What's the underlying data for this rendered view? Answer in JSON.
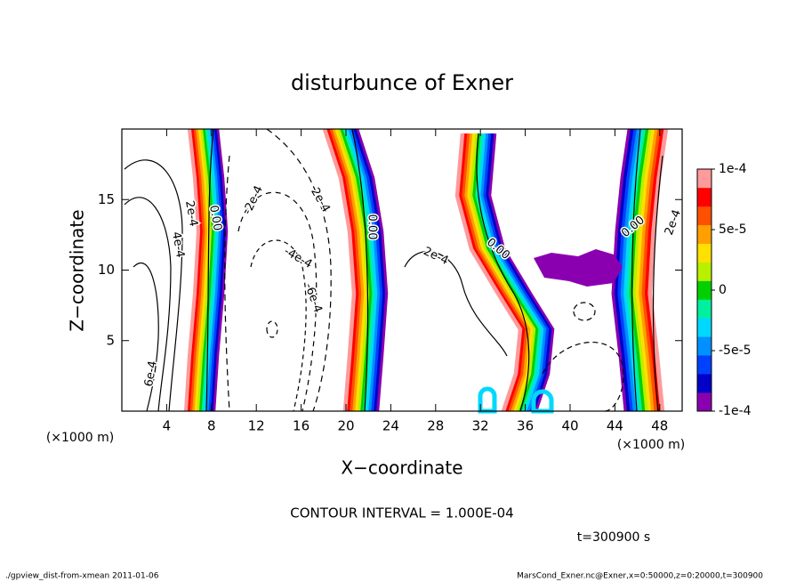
{
  "chart_data": {
    "type": "contour",
    "title": "disturbunce of Exner",
    "x_label": "X−coordinate",
    "y_label": "Z−coordinate",
    "x_unit": "(×1000 m)",
    "y_unit": "(×1000 m)",
    "xlim": [
      0,
      50
    ],
    "ylim": [
      0,
      20
    ],
    "xticks": [
      4,
      8,
      12,
      16,
      20,
      24,
      28,
      32,
      36,
      40,
      44,
      48
    ],
    "yticks": [
      5,
      10,
      15
    ],
    "colorbar": {
      "lim": [
        -0.0001,
        0.0001
      ],
      "ticks": [
        {
          "value": 0.0001,
          "label": "1e-4"
        },
        {
          "value": 5e-05,
          "label": "5e-5"
        },
        0,
        {
          "value": -5e-05,
          "label": "-5e-5"
        },
        {
          "value": -0.0001,
          "label": "-1e-4"
        }
      ],
      "colors": [
        "#8a00b0",
        "#0000c8",
        "#0040ff",
        "#0090ff",
        "#00d8ff",
        "#00f0a0",
        "#00d000",
        "#b8f000",
        "#ffe000",
        "#ffa000",
        "#ff5000",
        "#ff0000",
        "#ff9a9a"
      ]
    },
    "contour_interval_label": "CONTOUR INTERVAL = 1.000E-04",
    "contour_labels": [
      "2e-4",
      "0.00",
      "-2e-4",
      "2e-4",
      "0.00",
      "2e-4",
      "0.00",
      "0.00",
      "2e-4",
      "4e-4",
      "-4e-4",
      "-6e-4",
      "6e-4"
    ],
    "time_label": "t=300900 s",
    "footer": {
      "left": "./gpview_dist-from-xmean  2011-01-06",
      "right": "MarsCond_Exner.nc@Exner,x=0:50000,z=0:20000,t=300900"
    }
  }
}
